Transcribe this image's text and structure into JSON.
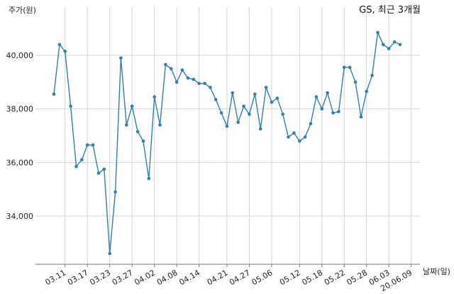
{
  "chart_data": {
    "type": "line",
    "title": "GS, 최근 3개월",
    "ylabel": "주가(원)",
    "xlabel": "날짜(일)",
    "ylim": [
      32200,
      41800
    ],
    "y_ticks": [
      "34,000",
      "36,000",
      "38,000",
      "40,000"
    ],
    "y_tick_values": [
      34000,
      36000,
      38000,
      40000
    ],
    "x_tick_labels": [
      "03.11",
      "03.17",
      "03.23",
      "03.27",
      "04.02",
      "04.08",
      "04.14",
      "04.21",
      "04.27",
      "05.06",
      "05.12",
      "05.18",
      "05.22",
      "05.28",
      "06.03",
      "20.06.09"
    ],
    "x_tick_indices": [
      2,
      6,
      10,
      14,
      18,
      22,
      26,
      31,
      35,
      39,
      44,
      48,
      52,
      56,
      60,
      64
    ],
    "grid": true,
    "series_color": "#2f7fb1",
    "values": [
      38550,
      40400,
      40150,
      38100,
      35850,
      36100,
      36650,
      36650,
      35600,
      35750,
      32600,
      34900,
      39900,
      37400,
      38100,
      37150,
      36800,
      35400,
      38450,
      37400,
      39650,
      39500,
      39000,
      39450,
      39150,
      39100,
      38950,
      38950,
      38800,
      38350,
      37850,
      37350,
      38600,
      37500,
      38100,
      37800,
      38550,
      37250,
      38800,
      38250,
      38400,
      37800,
      36950,
      37100,
      36800,
      36950,
      37450,
      38450,
      38000,
      38600,
      37850,
      37900,
      39550,
      39550,
      39000,
      37700,
      38650,
      39250,
      40850,
      40400,
      40250,
      40500,
      40400
    ]
  }
}
